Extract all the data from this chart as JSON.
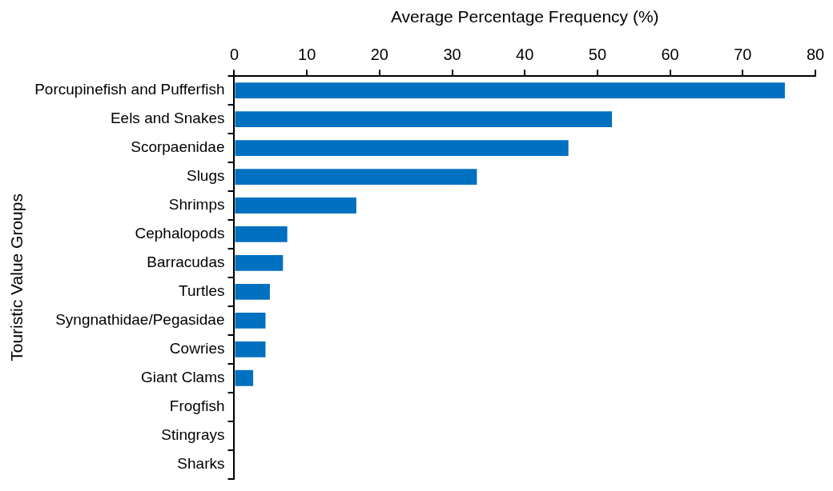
{
  "chart_data": {
    "type": "bar",
    "orientation": "horizontal",
    "xlabel": "Average Percentage Frequency (%)",
    "ylabel": "Touristic Value Groups",
    "categories": [
      "Porcupinefish and Pufferfish",
      "Eels and Snakes",
      "Scorpaenidae",
      "Slugs",
      "Shrimps",
      "Cephalopods",
      "Barracudas",
      "Turtles",
      "Syngnathidae/Pegasidae",
      "Cowries",
      "Giant Clams",
      "Frogfish",
      "Stingrays",
      "Sharks"
    ],
    "values": [
      75.8,
      52.0,
      46.0,
      33.4,
      16.8,
      7.3,
      6.7,
      4.9,
      4.3,
      4.3,
      2.6,
      0,
      0,
      0
    ],
    "color": "#0070c0",
    "xlim": [
      0,
      80
    ],
    "xticks": [
      0,
      10,
      20,
      30,
      40,
      50,
      60,
      70,
      80
    ],
    "grid": false,
    "legend": false
  }
}
